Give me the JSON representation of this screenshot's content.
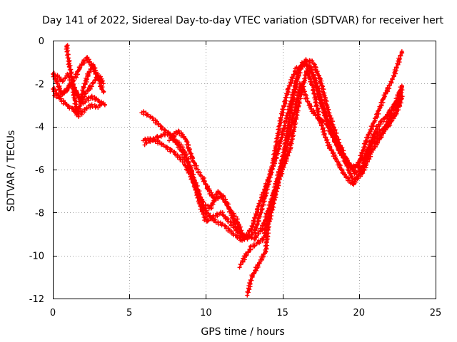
{
  "chart_data": {
    "type": "scatter",
    "title": "Day 141 of 2022, Sidereal Day-to-day VTEC variation (SDTVAR) for receiver hert",
    "xlabel": "GPS time / hours",
    "ylabel": "SDTVAR / TECUs",
    "xlim": [
      0,
      25
    ],
    "ylim": [
      -12,
      0
    ],
    "xticks": [
      0,
      5,
      10,
      15,
      20,
      25
    ],
    "yticks": [
      -12,
      -10,
      -8,
      -6,
      -4,
      -2,
      0
    ],
    "grid": true,
    "marker": "plus",
    "color": "#ff0000",
    "series": [
      {
        "segment": "early-1",
        "points": [
          [
            0.0,
            -1.5
          ],
          [
            0.3,
            -2.0
          ],
          [
            0.6,
            -2.5
          ],
          [
            1.0,
            -2.2
          ],
          [
            1.4,
            -1.8
          ],
          [
            1.8,
            -1.2
          ],
          [
            2.2,
            -0.8
          ],
          [
            2.6,
            -1.2
          ],
          [
            3.0,
            -1.8
          ],
          [
            3.3,
            -2.4
          ]
        ]
      },
      {
        "segment": "early-2",
        "points": [
          [
            0.0,
            -2.2
          ],
          [
            0.4,
            -2.6
          ],
          [
            0.8,
            -2.4
          ],
          [
            1.2,
            -2.0
          ],
          [
            1.6,
            -2.5
          ],
          [
            2.0,
            -2.9
          ],
          [
            2.5,
            -2.6
          ],
          [
            3.0,
            -2.8
          ],
          [
            3.4,
            -3.0
          ]
        ]
      },
      {
        "segment": "early-3",
        "points": [
          [
            0.2,
            -1.6
          ],
          [
            0.6,
            -1.9
          ],
          [
            1.0,
            -1.6
          ],
          [
            1.4,
            -2.2
          ],
          [
            1.8,
            -2.8
          ],
          [
            2.2,
            -2.4
          ],
          [
            2.6,
            -2.0
          ],
          [
            3.0,
            -1.6
          ],
          [
            3.3,
            -2.0
          ]
        ]
      },
      {
        "segment": "early-4",
        "points": [
          [
            0.9,
            -0.2
          ],
          [
            1.0,
            -0.8
          ],
          [
            1.2,
            -1.6
          ],
          [
            1.4,
            -2.6
          ],
          [
            1.6,
            -3.4
          ],
          [
            1.8,
            -3.0
          ],
          [
            2.0,
            -2.2
          ],
          [
            2.3,
            -1.6
          ],
          [
            2.6,
            -1.1
          ],
          [
            2.8,
            -1.4
          ]
        ]
      },
      {
        "segment": "early-5",
        "points": [
          [
            0.1,
            -2.5
          ],
          [
            0.5,
            -2.7
          ],
          [
            0.9,
            -3.0
          ],
          [
            1.3,
            -3.2
          ],
          [
            1.7,
            -3.5
          ],
          [
            2.1,
            -3.2
          ],
          [
            2.5,
            -3.0
          ],
          [
            2.9,
            -3.1
          ],
          [
            3.3,
            -2.9
          ]
        ]
      },
      {
        "segment": "main-1",
        "points": [
          [
            5.9,
            -4.6
          ],
          [
            6.6,
            -4.6
          ],
          [
            7.3,
            -4.9
          ],
          [
            7.9,
            -5.2
          ],
          [
            8.5,
            -5.6
          ],
          [
            9.0,
            -6.3
          ],
          [
            9.4,
            -7.0
          ],
          [
            9.8,
            -7.6
          ],
          [
            10.3,
            -7.8
          ],
          [
            10.8,
            -7.0
          ],
          [
            11.4,
            -7.6
          ],
          [
            12.0,
            -8.7
          ],
          [
            12.5,
            -9.1
          ],
          [
            13.2,
            -9.2
          ],
          [
            13.7,
            -8.7
          ],
          [
            14.3,
            -7.4
          ],
          [
            15.0,
            -5.5
          ],
          [
            15.5,
            -3.5
          ],
          [
            16.0,
            -1.5
          ],
          [
            16.5,
            -0.9
          ],
          [
            17.0,
            -1.0
          ],
          [
            17.5,
            -1.9
          ],
          [
            18.0,
            -3.3
          ],
          [
            18.6,
            -4.6
          ],
          [
            19.2,
            -5.6
          ],
          [
            19.8,
            -6.2
          ],
          [
            20.3,
            -5.8
          ],
          [
            20.8,
            -4.6
          ],
          [
            21.3,
            -3.9
          ],
          [
            21.8,
            -3.5
          ],
          [
            22.3,
            -3.0
          ],
          [
            22.8,
            -2.7
          ]
        ]
      },
      {
        "segment": "main-2",
        "points": [
          [
            5.8,
            -3.3
          ],
          [
            6.5,
            -3.6
          ],
          [
            7.2,
            -4.1
          ],
          [
            7.8,
            -4.5
          ],
          [
            8.4,
            -4.9
          ],
          [
            8.8,
            -5.5
          ],
          [
            9.2,
            -6.5
          ],
          [
            9.6,
            -7.6
          ],
          [
            10.0,
            -8.4
          ],
          [
            10.5,
            -8.2
          ],
          [
            11.0,
            -8.0
          ],
          [
            11.6,
            -8.5
          ],
          [
            12.2,
            -9.0
          ],
          [
            12.7,
            -9.2
          ],
          [
            13.2,
            -8.9
          ],
          [
            13.7,
            -7.7
          ],
          [
            14.3,
            -6.0
          ],
          [
            14.9,
            -3.6
          ],
          [
            15.4,
            -2.2
          ],
          [
            15.9,
            -1.3
          ],
          [
            16.5,
            -1.1
          ],
          [
            17.0,
            -1.6
          ],
          [
            17.5,
            -2.9
          ],
          [
            18.1,
            -4.2
          ],
          [
            18.7,
            -5.1
          ],
          [
            19.3,
            -5.8
          ],
          [
            19.9,
            -5.9
          ],
          [
            20.5,
            -4.6
          ],
          [
            21.1,
            -3.6
          ],
          [
            21.7,
            -2.5
          ],
          [
            22.2,
            -1.8
          ],
          [
            22.8,
            -0.5
          ]
        ]
      },
      {
        "segment": "main-3",
        "points": [
          [
            6.0,
            -4.8
          ],
          [
            6.8,
            -4.5
          ],
          [
            7.6,
            -4.3
          ],
          [
            8.3,
            -5.0
          ],
          [
            8.9,
            -5.8
          ],
          [
            9.5,
            -7.0
          ],
          [
            10.0,
            -8.0
          ],
          [
            10.6,
            -8.4
          ],
          [
            11.2,
            -8.6
          ],
          [
            11.8,
            -9.0
          ],
          [
            12.4,
            -9.3
          ],
          [
            13.0,
            -8.7
          ],
          [
            13.5,
            -7.6
          ],
          [
            14.0,
            -6.6
          ],
          [
            14.6,
            -5.4
          ],
          [
            15.2,
            -3.8
          ],
          [
            15.8,
            -2.2
          ],
          [
            16.3,
            -1.0
          ],
          [
            16.8,
            -1.2
          ],
          [
            17.3,
            -2.2
          ],
          [
            17.9,
            -3.6
          ],
          [
            18.5,
            -4.8
          ],
          [
            19.1,
            -5.6
          ],
          [
            19.6,
            -6.5
          ],
          [
            20.2,
            -6.2
          ],
          [
            20.8,
            -5.2
          ],
          [
            21.4,
            -4.5
          ],
          [
            22.0,
            -3.8
          ],
          [
            22.6,
            -3.1
          ],
          [
            22.8,
            -2.6
          ]
        ]
      },
      {
        "segment": "main-4",
        "points": [
          [
            12.2,
            -10.5
          ],
          [
            12.6,
            -10.0
          ],
          [
            13.0,
            -9.6
          ],
          [
            13.4,
            -9.4
          ],
          [
            13.8,
            -9.2
          ],
          [
            14.0,
            -8.4
          ],
          [
            14.5,
            -7.0
          ],
          [
            15.0,
            -6.0
          ],
          [
            15.5,
            -5.0
          ],
          [
            16.1,
            -2.8
          ],
          [
            16.6,
            -1.4
          ],
          [
            17.0,
            -2.2
          ],
          [
            17.4,
            -3.6
          ],
          [
            17.9,
            -4.7
          ],
          [
            18.5,
            -5.5
          ],
          [
            19.0,
            -6.2
          ],
          [
            19.6,
            -6.7
          ],
          [
            20.2,
            -6.0
          ],
          [
            20.8,
            -4.7
          ],
          [
            21.3,
            -4.2
          ],
          [
            21.9,
            -4.0
          ],
          [
            22.4,
            -3.4
          ],
          [
            22.8,
            -2.2
          ]
        ]
      },
      {
        "segment": "main-5",
        "points": [
          [
            12.7,
            -11.8
          ],
          [
            13.0,
            -11.0
          ],
          [
            13.3,
            -10.6
          ],
          [
            13.6,
            -10.2
          ],
          [
            13.9,
            -9.8
          ],
          [
            14.1,
            -8.5
          ],
          [
            14.4,
            -7.6
          ],
          [
            14.8,
            -6.4
          ],
          [
            15.3,
            -4.8
          ],
          [
            15.8,
            -3.2
          ],
          [
            16.2,
            -2.0
          ],
          [
            16.5,
            -2.6
          ],
          [
            16.9,
            -3.2
          ],
          [
            17.3,
            -3.6
          ],
          [
            17.9,
            -3.9
          ],
          [
            18.5,
            -4.7
          ],
          [
            19.1,
            -5.5
          ],
          [
            19.6,
            -6.0
          ],
          [
            20.3,
            -5.4
          ],
          [
            21.0,
            -4.7
          ],
          [
            21.6,
            -4.2
          ],
          [
            22.2,
            -3.2
          ],
          [
            22.8,
            -2.1
          ]
        ]
      },
      {
        "segment": "main-6",
        "points": [
          [
            7.6,
            -4.6
          ],
          [
            8.2,
            -4.2
          ],
          [
            8.7,
            -4.6
          ],
          [
            9.1,
            -5.5
          ],
          [
            9.5,
            -6.1
          ],
          [
            9.8,
            -6.4
          ],
          [
            10.2,
            -7.0
          ],
          [
            10.6,
            -7.4
          ],
          [
            11.1,
            -7.2
          ],
          [
            11.5,
            -7.8
          ],
          [
            12.0,
            -8.3
          ],
          [
            12.4,
            -9.1
          ]
        ]
      }
    ]
  }
}
